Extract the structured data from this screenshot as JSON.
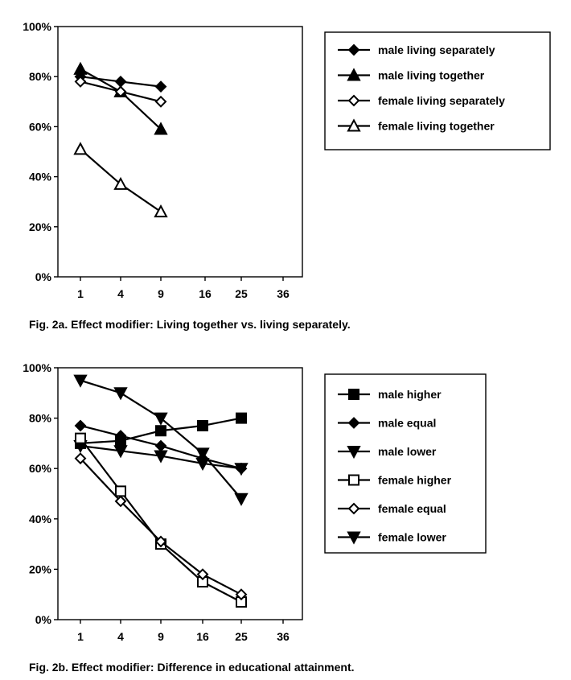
{
  "chart_data": [
    {
      "type": "line",
      "caption": "Fig. 2a.  Effect modifier: Living together vs. living separately.",
      "x_ticks": [
        "1",
        "4",
        "9",
        "16",
        "25",
        "36"
      ],
      "y_ticks": [
        "0%",
        "20%",
        "40%",
        "60%",
        "80%",
        "100%"
      ],
      "ylim": [
        0,
        100
      ],
      "grid": false,
      "legend_placement": "right",
      "series": [
        {
          "name": "male living separately",
          "marker": "diamond-filled",
          "x": [
            "1",
            "4",
            "9"
          ],
          "values": [
            80,
            78,
            76
          ]
        },
        {
          "name": "male living together",
          "marker": "triangle-filled",
          "x": [
            "1",
            "4",
            "9"
          ],
          "values": [
            83,
            74,
            59
          ]
        },
        {
          "name": "female living separately",
          "marker": "diamond-open",
          "x": [
            "1",
            "4",
            "9"
          ],
          "values": [
            78,
            74,
            70
          ]
        },
        {
          "name": "female living together",
          "marker": "triangle-open",
          "x": [
            "1",
            "4",
            "9"
          ],
          "values": [
            51,
            37,
            26
          ]
        }
      ]
    },
    {
      "type": "line",
      "caption": "Fig. 2b. Effect modifier: Difference in educational attainment.",
      "x_ticks": [
        "1",
        "4",
        "9",
        "16",
        "25",
        "36"
      ],
      "y_ticks": [
        "0%",
        "20%",
        "40%",
        "60%",
        "80%",
        "100%"
      ],
      "ylim": [
        0,
        100
      ],
      "grid": false,
      "legend_placement": "right",
      "series": [
        {
          "name": "male higher",
          "marker": "square-filled",
          "x": [
            "1",
            "4",
            "9",
            "16",
            "25"
          ],
          "values": [
            70,
            71,
            75,
            77,
            80
          ]
        },
        {
          "name": "male equal",
          "marker": "diamond-filled",
          "x": [
            "1",
            "4",
            "9",
            "16",
            "25"
          ],
          "values": [
            77,
            73,
            69,
            64,
            60
          ]
        },
        {
          "name": "male lower",
          "marker": "triangle-down-filled",
          "x": [
            "1",
            "4",
            "9",
            "16",
            "25"
          ],
          "values": [
            69,
            67,
            65,
            62,
            60
          ]
        },
        {
          "name": "female higher",
          "marker": "square-open",
          "x": [
            "1",
            "4",
            "9",
            "16",
            "25"
          ],
          "values": [
            72,
            51,
            30,
            15,
            7
          ]
        },
        {
          "name": "female equal",
          "marker": "diamond-open",
          "x": [
            "1",
            "4",
            "9",
            "16",
            "25"
          ],
          "values": [
            64,
            47,
            31,
            18,
            10
          ]
        },
        {
          "name": "female lower",
          "marker": "triangle-down-filled",
          "x": [
            "1",
            "4",
            "9",
            "16",
            "25"
          ],
          "values": [
            95,
            90,
            80,
            66,
            48
          ]
        }
      ]
    }
  ]
}
